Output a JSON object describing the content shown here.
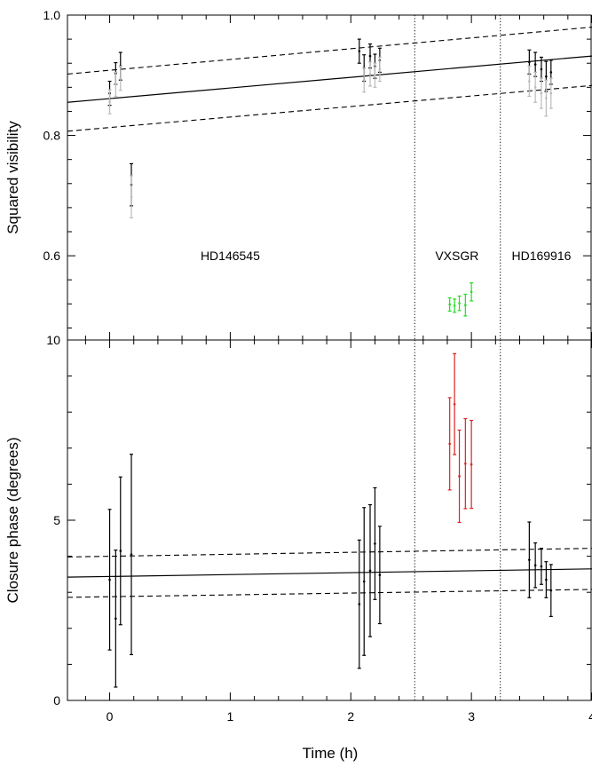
{
  "chart_data": [
    {
      "type": "scatter",
      "title": "",
      "xlabel": "",
      "ylabel": "Squared visibility",
      "xlim": [
        -0.35,
        4.0
      ],
      "ylim": [
        0.46,
        1.0
      ],
      "yticks": [
        {
          "v": 0.6,
          "label": "0.6"
        },
        {
          "v": 0.8,
          "label": "0.8"
        },
        {
          "v": 1.0,
          "label": "1.0"
        }
      ],
      "xticks": [
        0,
        1,
        2,
        3,
        4
      ],
      "vlines": [
        2.53,
        3.24
      ],
      "annotations": [
        {
          "text": "HD146545",
          "x": 1.0,
          "y": 0.6
        },
        {
          "text": "VXSGR",
          "x": 2.88,
          "y": 0.6
        },
        {
          "text": "HD169916",
          "x": 3.58,
          "y": 0.6
        }
      ],
      "fit": {
        "x0": -0.35,
        "y0": 0.855,
        "x1": 4.0,
        "y1": 0.932
      },
      "band_upper": {
        "x0": -0.35,
        "y0": 0.902,
        "x1": 4.0,
        "y1": 0.98
      },
      "band_lower": {
        "x0": -0.35,
        "y0": 0.807,
        "x1": 4.0,
        "y1": 0.883
      },
      "series": [
        {
          "color": "#000000",
          "points": [
            {
              "x": 0.0,
              "y": 0.87,
              "err": 0.02
            },
            {
              "x": 0.05,
              "y": 0.903,
              "err": 0.018
            },
            {
              "x": 0.09,
              "y": 0.915,
              "err": 0.023
            },
            {
              "x": 0.18,
              "y": 0.718,
              "err": 0.035
            },
            {
              "x": 2.07,
              "y": 0.94,
              "err": 0.02
            },
            {
              "x": 2.11,
              "y": 0.912,
              "err": 0.022
            },
            {
              "x": 2.16,
              "y": 0.932,
              "err": 0.02
            },
            {
              "x": 2.2,
              "y": 0.915,
              "err": 0.02
            },
            {
              "x": 2.24,
              "y": 0.925,
              "err": 0.02
            },
            {
              "x": 3.48,
              "y": 0.922,
              "err": 0.02
            },
            {
              "x": 3.53,
              "y": 0.918,
              "err": 0.02
            },
            {
              "x": 3.58,
              "y": 0.91,
              "err": 0.02
            },
            {
              "x": 3.62,
              "y": 0.898,
              "err": 0.025
            },
            {
              "x": 3.66,
              "y": 0.905,
              "err": 0.02
            }
          ]
        },
        {
          "color": "#bbbbbb",
          "points": [
            {
              "x": 0.0,
              "y": 0.856,
              "err": 0.02
            },
            {
              "x": 0.05,
              "y": 0.885,
              "err": 0.02
            },
            {
              "x": 0.09,
              "y": 0.895,
              "err": 0.02
            },
            {
              "x": 0.18,
              "y": 0.698,
              "err": 0.035
            },
            {
              "x": 2.11,
              "y": 0.892,
              "err": 0.02
            },
            {
              "x": 2.16,
              "y": 0.902,
              "err": 0.02
            },
            {
              "x": 2.2,
              "y": 0.9,
              "err": 0.02
            },
            {
              "x": 2.24,
              "y": 0.91,
              "err": 0.02
            },
            {
              "x": 3.48,
              "y": 0.89,
              "err": 0.025
            },
            {
              "x": 3.53,
              "y": 0.88,
              "err": 0.025
            },
            {
              "x": 3.58,
              "y": 0.87,
              "err": 0.025
            },
            {
              "x": 3.62,
              "y": 0.862,
              "err": 0.03
            },
            {
              "x": 3.66,
              "y": 0.87,
              "err": 0.025
            }
          ]
        },
        {
          "color": "#22dd22",
          "points": [
            {
              "x": 2.82,
              "y": 0.519,
              "err": 0.011
            },
            {
              "x": 2.86,
              "y": 0.517,
              "err": 0.011
            },
            {
              "x": 2.9,
              "y": 0.521,
              "err": 0.012
            },
            {
              "x": 2.95,
              "y": 0.518,
              "err": 0.018
            },
            {
              "x": 3.0,
              "y": 0.54,
              "err": 0.015
            }
          ]
        }
      ]
    },
    {
      "type": "scatter",
      "title": "",
      "xlabel": "Time (h)",
      "ylabel": "Closure phase (degrees)",
      "xlim": [
        -0.35,
        4.0
      ],
      "ylim": [
        0,
        10
      ],
      "yticks": [
        {
          "v": 0,
          "label": "0"
        },
        {
          "v": 5,
          "label": "5"
        },
        {
          "v": 10,
          "label": "10"
        }
      ],
      "xticks": [
        0,
        1,
        2,
        3,
        4
      ],
      "vlines": [
        2.53,
        3.24
      ],
      "fit": {
        "x0": -0.35,
        "y0": 3.42,
        "x1": 4.0,
        "y1": 3.65
      },
      "band_upper": {
        "x0": -0.35,
        "y0": 3.98,
        "x1": 4.0,
        "y1": 4.22
      },
      "band_lower": {
        "x0": -0.35,
        "y0": 2.86,
        "x1": 4.0,
        "y1": 3.08
      },
      "series": [
        {
          "color": "#000000",
          "points": [
            {
              "x": 0.0,
              "y": 3.35,
              "err": 1.95
            },
            {
              "x": 0.05,
              "y": 2.27,
              "err": 1.9
            },
            {
              "x": 0.09,
              "y": 4.15,
              "err": 2.05
            },
            {
              "x": 0.18,
              "y": 4.05,
              "err": 2.78
            },
            {
              "x": 2.07,
              "y": 2.67,
              "err": 1.78
            },
            {
              "x": 2.11,
              "y": 3.3,
              "err": 2.05
            },
            {
              "x": 2.16,
              "y": 3.6,
              "err": 1.83
            },
            {
              "x": 2.2,
              "y": 4.35,
              "err": 1.55
            },
            {
              "x": 2.24,
              "y": 3.48,
              "err": 1.35
            },
            {
              "x": 3.48,
              "y": 3.9,
              "err": 1.05
            },
            {
              "x": 3.53,
              "y": 3.75,
              "err": 0.62
            },
            {
              "x": 3.58,
              "y": 3.72,
              "err": 0.5
            },
            {
              "x": 3.62,
              "y": 3.35,
              "err": 0.5
            },
            {
              "x": 3.66,
              "y": 3.05,
              "err": 0.72
            }
          ]
        },
        {
          "color": "#dd2222",
          "points": [
            {
              "x": 2.82,
              "y": 7.12,
              "err": 1.28
            },
            {
              "x": 2.86,
              "y": 8.22,
              "err": 1.4
            },
            {
              "x": 2.9,
              "y": 6.22,
              "err": 1.28
            },
            {
              "x": 2.95,
              "y": 6.57,
              "err": 1.25
            },
            {
              "x": 3.0,
              "y": 6.55,
              "err": 1.22
            }
          ]
        }
      ]
    }
  ]
}
